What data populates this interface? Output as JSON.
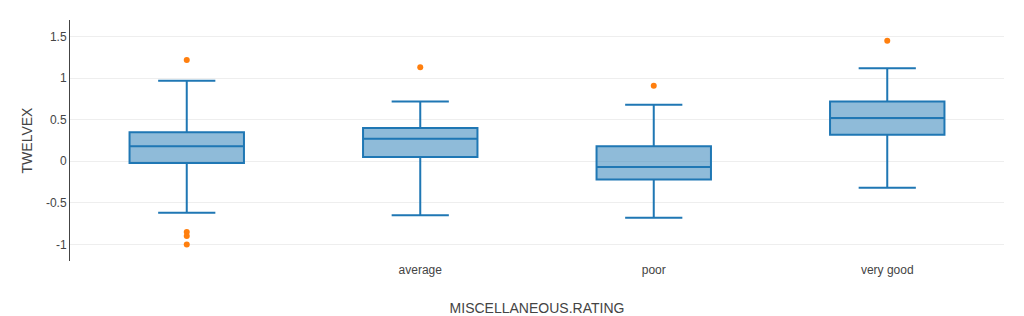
{
  "chart_data": {
    "type": "box",
    "categories": [
      null,
      "average",
      "poor",
      "very good"
    ],
    "boxes": [
      {
        "q1": -0.02,
        "median": 0.18,
        "q3": 0.35,
        "whisker_low": -0.62,
        "whisker_high": 0.97,
        "outliers": [
          1.22,
          -0.85,
          -0.9,
          -1.0
        ]
      },
      {
        "q1": 0.05,
        "median": 0.27,
        "q3": 0.4,
        "whisker_low": -0.65,
        "whisker_high": 0.72,
        "outliers": [
          1.13
        ]
      },
      {
        "q1": -0.22,
        "median": -0.07,
        "q3": 0.18,
        "whisker_low": -0.68,
        "whisker_high": 0.68,
        "outliers": [
          0.91
        ]
      },
      {
        "q1": 0.32,
        "median": 0.52,
        "q3": 0.72,
        "whisker_low": -0.32,
        "whisker_high": 1.12,
        "outliers": [
          1.45
        ]
      }
    ],
    "xlabel": "MISCELLANEOUS.RATING",
    "ylabel": "TWELVEX",
    "ylim": [
      -1.2,
      1.7
    ],
    "yticks": [
      -1.0,
      -0.5,
      0.0,
      0.5,
      1.0,
      1.5
    ],
    "grid": true
  }
}
